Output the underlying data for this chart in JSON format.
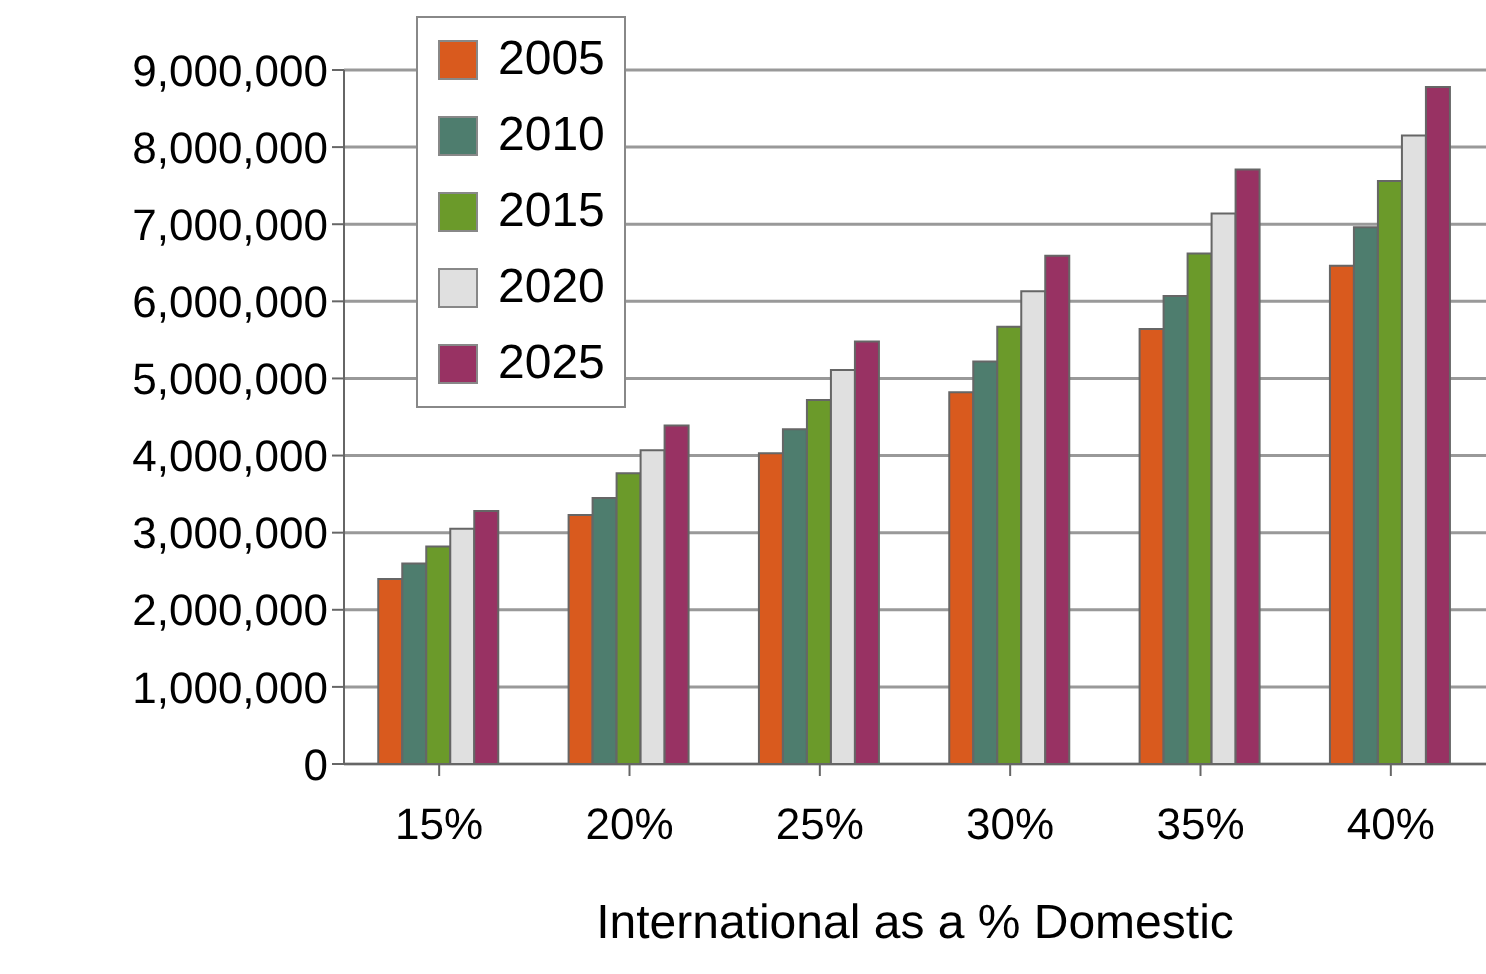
{
  "chart_data": {
    "type": "bar",
    "xlabel": "International as a % Domestic",
    "categories": [
      "15%",
      "20%",
      "25%",
      "30%",
      "35%",
      "40%"
    ],
    "series": [
      {
        "name": "2005",
        "color": "#d95a1e",
        "values": [
          2400000,
          3230000,
          4030000,
          4820000,
          5640000,
          6460000
        ]
      },
      {
        "name": "2010",
        "color": "#4e7d6e",
        "values": [
          2600000,
          3450000,
          4340000,
          5220000,
          6070000,
          6960000
        ]
      },
      {
        "name": "2015",
        "color": "#6b9a2a",
        "values": [
          2820000,
          3770000,
          4720000,
          5670000,
          6620000,
          7560000
        ]
      },
      {
        "name": "2020",
        "color": "#e0e0e0",
        "values": [
          3050000,
          4070000,
          5110000,
          6130000,
          7140000,
          8150000
        ]
      },
      {
        "name": "2025",
        "color": "#983263",
        "values": [
          3280000,
          4390000,
          5480000,
          6590000,
          7710000,
          8780000
        ]
      }
    ],
    "ylim": [
      0,
      9000000
    ],
    "yticks": [
      0,
      {
        "value": 1000000,
        "label": "1,000,000"
      },
      {
        "value": 2000000,
        "label": "2,000,000"
      },
      {
        "value": 3000000,
        "label": "3,000,000"
      },
      {
        "value": 4000000,
        "label": "4,000,000"
      },
      {
        "value": 5000000,
        "label": "5,000,000"
      },
      {
        "value": 6000000,
        "label": "6,000,000"
      },
      {
        "value": 7000000,
        "label": "7,000,000"
      },
      {
        "value": 8000000,
        "label": "8,000,000"
      },
      {
        "value": 9000000,
        "label": "9,000,000"
      }
    ],
    "grid": "y",
    "legend": "top left"
  }
}
